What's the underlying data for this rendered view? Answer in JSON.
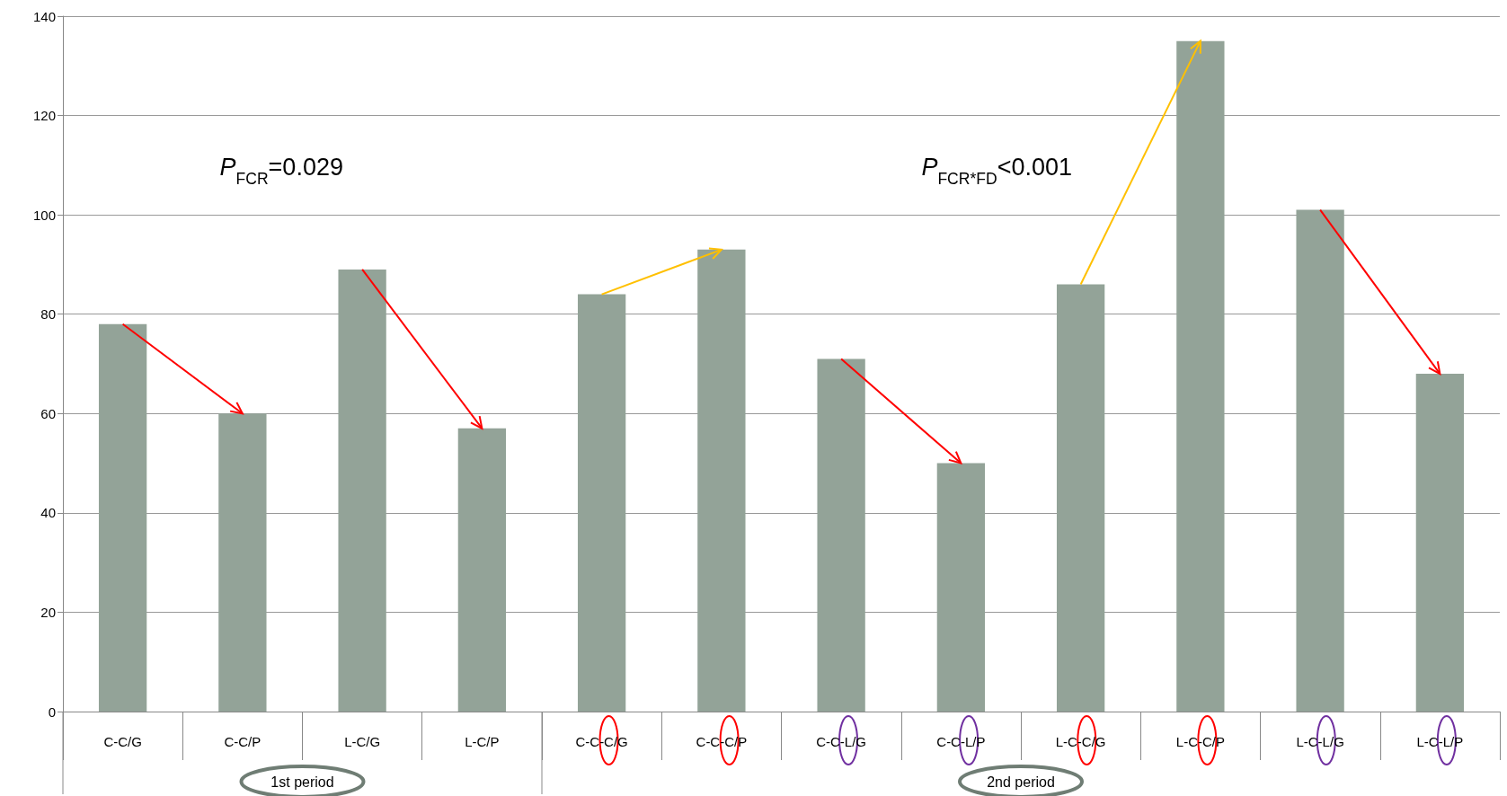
{
  "chart_data": {
    "type": "bar",
    "categories": [
      "C-C/G",
      "C-C/P",
      "L-C/G",
      "L-C/P",
      "C-C-C/G",
      "C-C-C/P",
      "C-C-L/G",
      "C-C-L/P",
      "L-C-C/G",
      "L-C-C/P",
      "L-C-L/G",
      "L-C-L/P"
    ],
    "values": [
      78,
      60,
      89,
      57,
      84,
      93,
      71,
      50,
      86,
      135,
      101,
      68
    ],
    "color": "#93a398",
    "ylim": [
      0,
      140
    ],
    "yticks": [
      0,
      20,
      40,
      60,
      80,
      100,
      120,
      140
    ],
    "grid": "y",
    "annotations": [
      "P$_{FCR}$=0.029",
      "P$_{FCR*FD}$<0.001",
      "1st period",
      "2nd period"
    ]
  }
}
